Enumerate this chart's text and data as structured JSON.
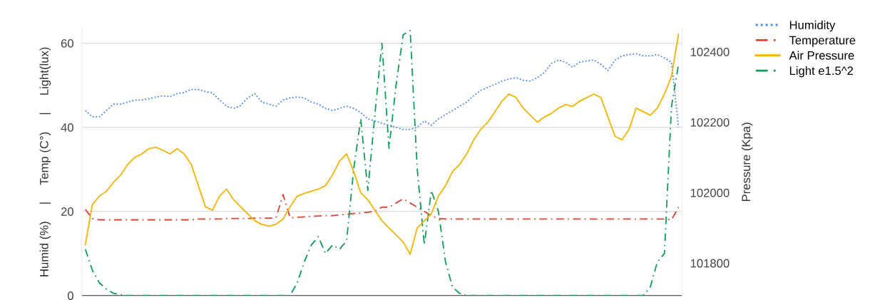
{
  "chart_data": {
    "type": "line",
    "ylabel": "Humid (%)     |     Temp (C°)     |     Light(lux)",
    "y2label": "Pressure (Kpa)",
    "categories": [
      null,
      null,
      null,
      null,
      null,
      null,
      null,
      null,
      null,
      null,
      null,
      null,
      null,
      null,
      null,
      null,
      null,
      null,
      null,
      null,
      null,
      null,
      null,
      null,
      null,
      null,
      null,
      null,
      null,
      null,
      null,
      null,
      null,
      null,
      null,
      null,
      null,
      null,
      null,
      null,
      null,
      null,
      null,
      null,
      null,
      null,
      null,
      null,
      null,
      null,
      null,
      null,
      null,
      null,
      null,
      null,
      null,
      null,
      null,
      null,
      null,
      null,
      null,
      null,
      null,
      null,
      null,
      null,
      null,
      null,
      null,
      null,
      null,
      null,
      null,
      null,
      null,
      null,
      null,
      null,
      null,
      null,
      null,
      null,
      null
    ],
    "series": [
      {
        "name": "Humidity",
        "color": "#4285f4",
        "line_style": "dotted",
        "values": [
          44,
          42.5,
          42.5,
          44,
          45.5,
          45.5,
          46,
          46.5,
          46.5,
          46.8,
          47.2,
          47.5,
          47.3,
          48,
          48.3,
          49,
          49,
          48.5,
          48.2,
          46.5,
          45,
          44.5,
          45.2,
          47,
          48,
          46,
          45.5,
          45,
          46.5,
          47,
          47.2,
          47,
          46,
          45.5,
          44.5,
          44,
          44.5,
          45,
          44.5,
          43.5,
          42,
          41.5,
          41,
          40.5,
          40,
          39.5,
          39.5,
          40,
          41.5,
          40.5,
          42,
          43,
          44,
          45,
          46,
          47.5,
          48.8,
          49.5,
          50.2,
          51,
          51.5,
          51.8,
          51.2,
          51,
          51.8,
          53,
          55.2,
          56,
          55.5,
          54.3,
          55.5,
          55.8,
          56,
          55,
          53.5,
          56,
          57,
          57.3,
          57.5,
          57,
          57,
          57.3,
          56.5,
          55.5,
          40
        ]
      },
      {
        "name": "Temperature",
        "color": "#db4437",
        "line_style": "dashed",
        "values": [
          20.5,
          18.3,
          18,
          18,
          18,
          18,
          18,
          18,
          18,
          18,
          18,
          18,
          18,
          18,
          18,
          18,
          18.2,
          18.2,
          18.2,
          18.2,
          18.3,
          18.3,
          18.3,
          18.3,
          18.4,
          18.4,
          18.4,
          18.5,
          24,
          18.5,
          18.6,
          18.7,
          18.8,
          18.9,
          19,
          19,
          19.2,
          19.3,
          19.5,
          19.6,
          19.8,
          20,
          21,
          21,
          22,
          23,
          22,
          21,
          20,
          19,
          18.3,
          18.2,
          18.2,
          18.2,
          18.2,
          18.2,
          18.2,
          18.2,
          18.2,
          18.2,
          18.2,
          18.2,
          18.2,
          18.2,
          18.2,
          18.2,
          18.2,
          18.2,
          18.2,
          18.2,
          18.2,
          18.2,
          18.2,
          18.2,
          18.2,
          18.2,
          18.2,
          18.2,
          18.2,
          18.2,
          18.2,
          18.2,
          18.2,
          18,
          21
        ]
      },
      {
        "name": "Air Pressure",
        "color": "#f4b400",
        "line_style": "solid",
        "axis": "y2",
        "values": [
          101852,
          101966,
          101990,
          102004,
          102030,
          102050,
          102080,
          102100,
          102110,
          102125,
          102129,
          102120,
          102110,
          102125,
          102110,
          102080,
          102020,
          101960,
          101950,
          101990,
          102010,
          101980,
          101960,
          101940,
          101920,
          101910,
          101905,
          101910,
          101925,
          101960,
          101990,
          101998,
          102004,
          102010,
          102020,
          102050,
          102090,
          102110,
          102060,
          102000,
          101980,
          101950,
          101920,
          101900,
          101880,
          101860,
          101825,
          101900,
          101920,
          101940,
          101990,
          102020,
          102060,
          102080,
          102110,
          102150,
          102180,
          102200,
          102230,
          102260,
          102280,
          102270,
          102240,
          102220,
          102200,
          102215,
          102225,
          102240,
          102250,
          102245,
          102260,
          102270,
          102280,
          102270,
          102215,
          102160,
          102150,
          102180,
          102240,
          102230,
          102220,
          102240,
          102280,
          102330,
          102450
        ]
      },
      {
        "name": "Light e1.5^2",
        "color": "#0f9d58",
        "line_style": "dashed",
        "values": [
          11,
          6,
          3,
          1.5,
          0.5,
          0.2,
          0,
          0,
          0,
          0,
          0,
          0,
          0,
          0,
          0,
          0,
          0,
          0,
          0,
          0,
          0,
          0,
          0,
          0,
          0,
          0,
          0,
          0,
          0,
          0,
          3,
          8,
          12,
          14,
          10,
          12,
          11,
          13,
          30,
          42,
          25,
          43,
          60,
          35,
          50,
          62,
          63,
          30,
          12,
          25,
          20,
          8,
          2,
          0.5,
          0,
          0,
          0,
          0,
          0,
          0,
          0,
          0,
          0,
          0,
          0,
          0,
          0,
          0,
          0,
          0,
          0,
          0,
          0,
          0,
          0,
          0,
          0,
          0,
          0,
          0,
          2,
          8,
          10,
          45,
          55
        ]
      }
    ],
    "ylim": [
      0,
      63.5
    ],
    "yticks": [
      0,
      20,
      40,
      60
    ],
    "y2lim": [
      101708,
      102466
    ],
    "y2ticks": [
      101800,
      102000,
      102200,
      102400
    ],
    "grid": "y",
    "legend": "top right"
  }
}
